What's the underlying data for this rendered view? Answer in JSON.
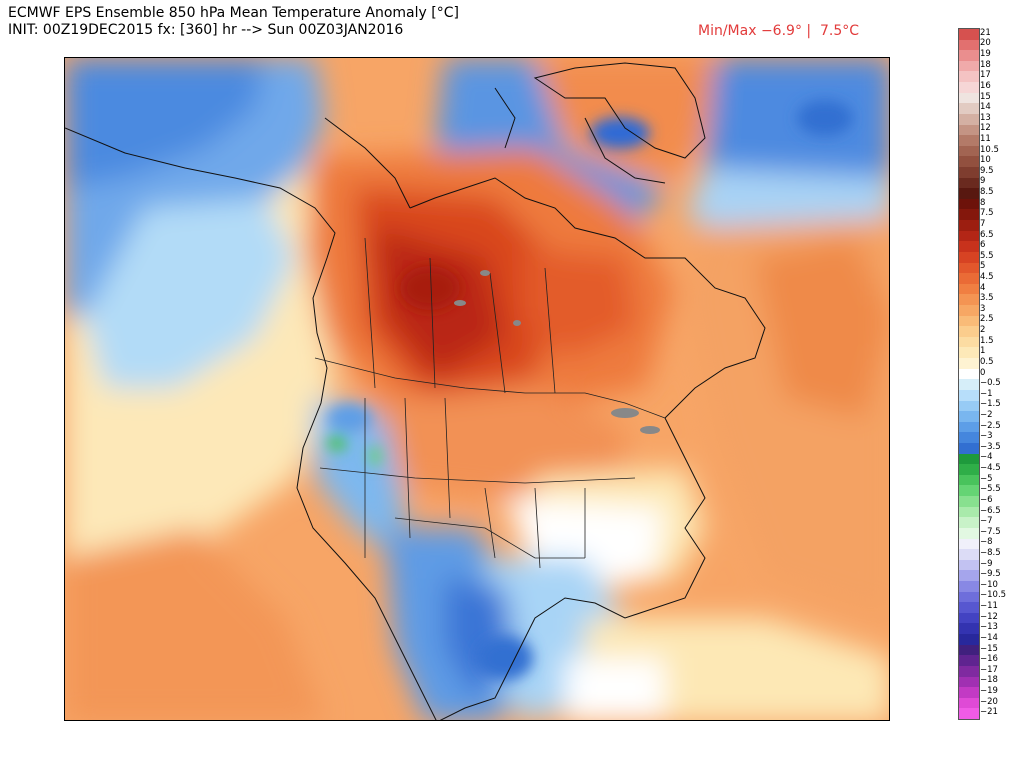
{
  "header": {
    "title_line1": "ECMWF EPS Ensemble 850 hPa Mean Temperature Anomaly [°C]",
    "title_line2": "INIT: 00Z19DEC2015 fx: [360] hr --> Sun 00Z03JAN2016",
    "minmax": "Min/Max −6.9° |  7.5°C"
  },
  "map": {
    "variable": "850 hPa mean temperature anomaly",
    "region": "North America",
    "warm_color": "#d2381f",
    "cold_color": "#2f6ad6"
  },
  "colorbar": {
    "labels": [
      "21",
      "20",
      "19",
      "18",
      "17",
      "16",
      "15",
      "14",
      "13",
      "12",
      "11",
      "10.5",
      "10",
      "9.5",
      "9",
      "8.5",
      "8",
      "7.5",
      "7",
      "6.5",
      "6",
      "5.5",
      "5",
      "4.5",
      "4",
      "3.5",
      "3",
      "2.5",
      "2",
      "1.5",
      "1",
      "0.5",
      "0",
      "−0.5",
      "−1",
      "−1.5",
      "−2",
      "−2.5",
      "−3",
      "−3.5",
      "−4",
      "−4.5",
      "−5",
      "−5.5",
      "−6",
      "−6.5",
      "−7",
      "−7.5",
      "−8",
      "−8.5",
      "−9",
      "−9.5",
      "−10",
      "−10.5",
      "−11",
      "−12",
      "−13",
      "−14",
      "−15",
      "−16",
      "−17",
      "−18",
      "−19",
      "−20",
      "−21"
    ],
    "colors": [
      "#d6514f",
      "#e2706f",
      "#ea8e8e",
      "#f0aaaa",
      "#f4c3c3",
      "#f6d6d6",
      "#efe4e0",
      "#e2cbc2",
      "#d4b0a3",
      "#c49484",
      "#b37a68",
      "#a26452",
      "#92503f",
      "#7f3d2f",
      "#6a2a1f",
      "#581810",
      "#6d120a",
      "#84170c",
      "#9c1e10",
      "#b32616",
      "#c8321c",
      "#d74323",
      "#e2572c",
      "#ea6b36",
      "#f07f42",
      "#f49453",
      "#f7a764",
      "#f9bb78",
      "#fbcd8d",
      "#fcdca2",
      "#fde9b8",
      "#fef3d2",
      "#ffffff",
      "#d6eef9",
      "#b7defa",
      "#97cbf5",
      "#79b6ef",
      "#5d9ee7",
      "#4586dd",
      "#326fd1",
      "#1e9a3c",
      "#2fae48",
      "#49c35c",
      "#65d474",
      "#88e08f",
      "#a9eaab",
      "#c8f2c8",
      "#e2f8e2",
      "#f0f0fa",
      "#dcdcf6",
      "#c2c2f2",
      "#a5a5ec",
      "#8888e4",
      "#6e6edb",
      "#5757d0",
      "#4343c2",
      "#3333b0",
      "#28289c",
      "#40207e",
      "#5f2490",
      "#7f2aa0",
      "#a030b2",
      "#c23ac4",
      "#df4ad6",
      "#f05be6"
    ]
  }
}
